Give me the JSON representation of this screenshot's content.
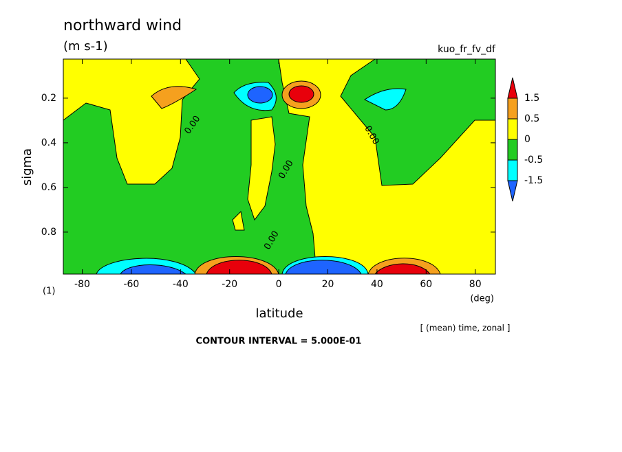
{
  "chart_data": {
    "type": "contour",
    "title": "northward wind",
    "units": "(m s-1)",
    "run_name": "kuo_fr_fv_df",
    "xlabel": "latitude",
    "ylabel": "sigma",
    "x_unit": "(deg)",
    "y_unit": "(1)",
    "note": "[ (mean) time, zonal ]",
    "contour_interval": "CONTOUR INTERVAL = 5.000E-01",
    "xlim": [
      -87.7,
      88.2
    ],
    "xticks": [
      -80,
      -60,
      -40,
      -20,
      0,
      20,
      40,
      60,
      80
    ],
    "ylim": [
      0.025,
      0.988
    ],
    "yticks": [
      0.2,
      0.4,
      0.6,
      0.8
    ],
    "y_inverted": true,
    "contour_labels": [
      "0.00",
      "0.00",
      "0.00",
      "0.00"
    ],
    "colorbar": {
      "levels": [
        -1.5,
        -0.5,
        0,
        0.5,
        1.5
      ],
      "colors": [
        "#1e64ff",
        "#00ffff",
        "#22cc22",
        "#ffff00",
        "#f5a01e",
        "#e8000b"
      ]
    }
  }
}
